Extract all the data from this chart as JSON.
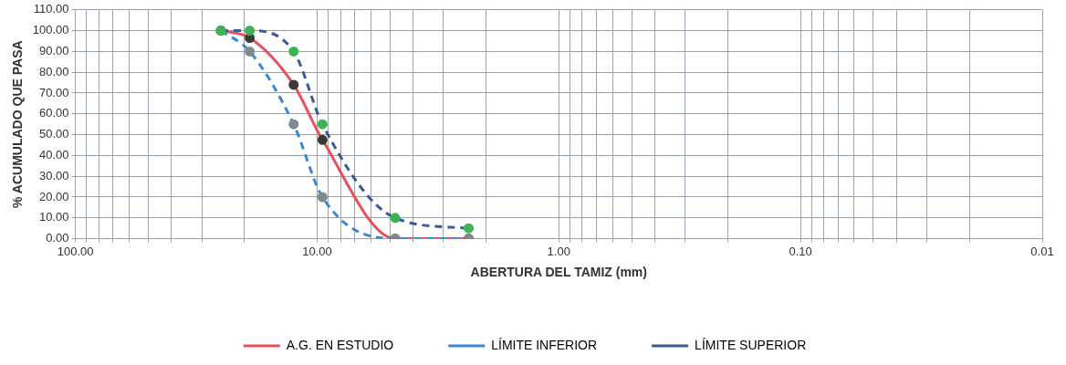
{
  "chart_data": {
    "type": "line",
    "xlabel": "ABERTURA DEL TAMIZ (mm)",
    "ylabel": "% ACUMULADO QUE PASA",
    "x": [
      25,
      19,
      12.5,
      9.5,
      4.75,
      2.36
    ],
    "series": [
      {
        "name": "A.G. EN ESTUDIO",
        "color": "#e8505b",
        "colors": [
          "#3a3a3a",
          "#3a3a3a",
          "#3a3a3a",
          "#3a3a3a",
          "#3a3a3a",
          "#3a3a3a"
        ],
        "line_style": "solid",
        "values": [
          100,
          96.5,
          74,
          47.5,
          0,
          0
        ]
      },
      {
        "name": "LÍMITE INFERIOR",
        "color": "#3a86d8",
        "colors": [
          "#7f8c8d",
          "#7f8c8d",
          "#7f8c8d",
          "#7f8c8d",
          "#7f8c8d",
          "#7f8c8d"
        ],
        "line_style": "dashed",
        "values": [
          100,
          90,
          55,
          20,
          0,
          0
        ]
      },
      {
        "name": "LÍMITE SUPERIOR",
        "color": "#3b5a9a",
        "colors": [
          "#3cb455",
          "#3cb455",
          "#3cb455",
          "#3cb455",
          "#3cb455",
          "#3cb455"
        ],
        "line_style": "dashed",
        "values": [
          100,
          100,
          90,
          55,
          10,
          5
        ]
      }
    ],
    "log": "x",
    "xlim": [
      100,
      0.01
    ],
    "xticks": [
      {
        "value": 100,
        "label": "100.00"
      },
      {
        "value": 90,
        "label": null
      },
      {
        "value": 80,
        "label": null
      },
      {
        "value": 70,
        "label": null
      },
      {
        "value": 60,
        "label": null
      },
      {
        "value": 50,
        "label": null
      },
      {
        "value": 40,
        "label": null
      },
      {
        "value": 30,
        "label": null
      },
      {
        "value": 20,
        "label": null
      },
      {
        "value": 10,
        "label": "10.00"
      },
      {
        "value": 9,
        "label": null
      },
      {
        "value": 8,
        "label": null
      },
      {
        "value": 7,
        "label": null
      },
      {
        "value": 6,
        "label": null
      },
      {
        "value": 5,
        "label": null
      },
      {
        "value": 4,
        "label": null
      },
      {
        "value": 3,
        "label": null
      },
      {
        "value": 2,
        "label": null
      },
      {
        "value": 1,
        "label": "1.00"
      },
      {
        "value": 0.9,
        "label": null
      },
      {
        "value": 0.8,
        "label": null
      },
      {
        "value": 0.7,
        "label": null
      },
      {
        "value": 0.6,
        "label": null
      },
      {
        "value": 0.5,
        "label": null
      },
      {
        "value": 0.4,
        "label": null
      },
      {
        "value": 0.3,
        "label": null
      },
      {
        "value": 0.2,
        "label": null
      },
      {
        "value": 0.1,
        "label": "0.10"
      },
      {
        "value": 0.09,
        "label": null
      },
      {
        "value": 0.08,
        "label": null
      },
      {
        "value": 0.07,
        "label": null
      },
      {
        "value": 0.06,
        "label": null
      },
      {
        "value": 0.05,
        "label": null
      },
      {
        "value": 0.04,
        "label": null
      },
      {
        "value": 0.03,
        "label": null
      },
      {
        "value": 0.02,
        "label": null
      },
      {
        "value": 0.01,
        "label": "0.01"
      }
    ],
    "ylim": [
      0,
      110
    ],
    "yticks": [
      {
        "value": 0,
        "label": "0.00"
      },
      {
        "value": 10,
        "label": "10.00"
      },
      {
        "value": 20,
        "label": "20.00"
      },
      {
        "value": 30,
        "label": "30.00"
      },
      {
        "value": 40,
        "label": "40.00"
      },
      {
        "value": 50,
        "label": "50.00"
      },
      {
        "value": 60,
        "label": "60.00"
      },
      {
        "value": 70,
        "label": "70.00"
      },
      {
        "value": 80,
        "label": "80.00"
      },
      {
        "value": 90,
        "label": "90.00"
      },
      {
        "value": 100,
        "label": "100.00"
      },
      {
        "value": 110,
        "label": "110.00"
      }
    ],
    "grid": true,
    "legend": "bottom",
    "marker": "circle"
  }
}
